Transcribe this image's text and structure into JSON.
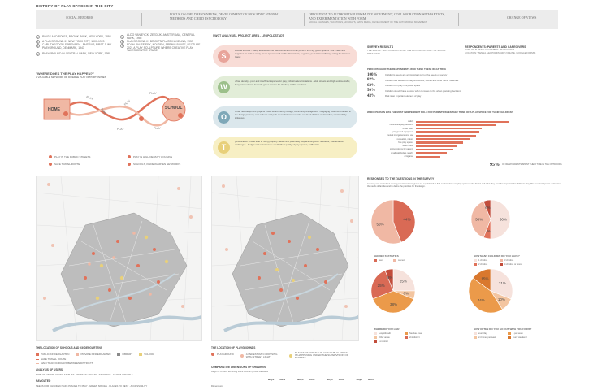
{
  "header": {
    "title": "HISTORY OF PLAY SPACES IN THE CITY",
    "cells": [
      {
        "label": "SOCIAL REFORMS"
      },
      {
        "label": "FOCUS ON CHILDREN'S NEEDS, DEVELOPMENT OF NEW EDUCATIONAL METHODS AND CHILD PSYCHOLOGY"
      },
      {
        "label": "OPPOSITION TO AUTHORITARIANISM, DIY MOVEMENT, COLLABORATION WITH ARTISTS, AND EXPERIMENTATION WITH FORM",
        "sub": "SOCIAL CHANGES, VACATIONS, HOLIDAYS, MASS MEDIA, DEVELOPMENT OF THE AUTOMOBILE MOVEMENT"
      },
      {
        "label": "CHANGE OF VIEWS"
      }
    ]
  },
  "history": {
    "left": [
      "RINGS AND POLES, BROOK PARK, NEW YORK, 1892",
      "A PLAYGROUND IN NEW YORK CITY, 1900-1920",
      "CARL THEODOR SØRENSEN - EMDRUP, FIRST JUNK PLAYGROUND, DENMARK, 1943",
      "PLAYGROUND IN CENTRAL PARK, NEW YORK, 1955"
    ],
    "right": [
      "ALDO VAN EYCK, ZEEDIJK, AMSTERDAM, CENTRAL PARK, 1955",
      "PLAYGROUND IN BRIGITTAPLATZ IN VIENNA, 1959",
      "EDON PAUSE EEK, NOLDEN, SPRING BLUSE, LECTURE 2021 A PLAY SCULPTURE WHERE CREATIVE PLAY TAKES CENTRE STAGE"
    ]
  },
  "play_diagram": {
    "title": "\"WHERE DOES THE PLAY HAPPEN?\"",
    "subtitle": "A VALUABLE NETWORK OF DIVERSE PLAY OPPORTUNITIES",
    "home": "HOME",
    "school": "SCHOOL",
    "play_labels": [
      "PLAY",
      "PLAY",
      "PLAY",
      "PLAY",
      "PLAY",
      "PLAY"
    ],
    "legend": [
      {
        "label": "PLAY IN THE PUBLIC STREETS",
        "color": "#e0725a"
      },
      {
        "label": "PLAY IN HIGH DENSITY HOUSING",
        "color": "#e0725a"
      },
      {
        "label": "SAFE TRAVEL ROUTE",
        "color": "#e0725a"
      },
      {
        "label": "SCHOOLS, KINDERGARTEN NETWORKS",
        "color": "#e0725a"
      }
    ]
  },
  "swot": {
    "title": "SWOT ANALYSIS - PROJECT AREA - LEOPOLDSTADT",
    "items": [
      {
        "letter": "S",
        "color": "#e8a49a",
        "bg": "#f8dcd6",
        "text": "several schools - easily accessible and well-connected to other parts of the city; green spaces - the Prater and Augarten as well as many green spaces such as the Praterstern; Augarten; pedestrian walkways along the Danube Canal"
      },
      {
        "letter": "W",
        "color": "#9cc08a",
        "bg": "#e2edd8",
        "text": "urban density - poor and insufficient spaces for play; infrastructure limitations - wide streets and high-volume traffic, busy intersections; few safe green spaces for children; traffic conditions"
      },
      {
        "letter": "O",
        "color": "#7fa8b8",
        "bg": "#dbe7ec",
        "text": "urban redevelopment projects - user doubt-friendly design; community engagement - engaging local communities in the design process; new schools and park areas that can meet the needs of children and families; sustainability initiatives"
      },
      {
        "letter": "T",
        "color": "#e8d07a",
        "bg": "#f7efc4",
        "text": "gentrification - could lead to rising property values and potentially displace long-term residents; maintenance challenges - budget and maintenance could affect quality of play spaces; traffic risks"
      }
    ]
  },
  "survey": {
    "title": "SURVEY RESULTS",
    "sub1": "THE SURVEY WAS CONDUCTED BY THE AUTHORS AS PART OF SOCIAL RESEARCH",
    "title2": "RESPONDENTS: PARENTS AND CAREGIVERS",
    "sub2": "DATE OF SURVEY: DECEMBER - MARCH 2024",
    "sub3": "LOCATION: VIENNA, LEOPOLDSTADT (ONLINE, GOOGLE FORMS)",
    "stats_title": "PERCENTAGE OF THE RESPONDENTS WHO THINK THESE IDEAS TRUE",
    "stats": [
      {
        "pct": "100%",
        "text": "Children's needs are an important part of the needs of society"
      },
      {
        "pct": "82%",
        "text": "Children are allowed to play with sticks, stones and other found materials"
      },
      {
        "pct": "63%",
        "text": "Children can play in a public space"
      },
      {
        "pct": "50%",
        "text": "Children should have a voice when it comes to the urban planning decisions"
      },
      {
        "pct": "43%",
        "text": "Risk is an important element of play"
      }
    ],
    "bars_title": "WHICH PERSON WAS THE MOST INDEPENDENT ROLE FOR PARENTS WHEN THEY THINK OF A PLAY SPACE FOR THEIR CHILDREN?",
    "footnote_pct": "95%",
    "footnote": "OF RESPONDENTS SPENT THEIR TIME IN THE OUTDOORS"
  },
  "chart_data": [
    {
      "type": "bar",
      "title": "",
      "categories": [
        "safety",
        "natural-like play elements",
        "urban oasis",
        "playground equipment",
        "mutual intergenerational use",
        "recreation, nature",
        "free play spaces",
        "water areas",
        "sitting options for parents",
        "small cafe/toilets nearby",
        "a big area"
      ],
      "values": [
        100,
        85,
        70,
        68,
        64,
        57,
        50,
        44,
        40,
        33,
        26
      ]
    },
    {
      "type": "pie",
      "title": "GENDER STATISTICS",
      "labels": [
        "men",
        "women"
      ],
      "values": [
        44,
        56
      ],
      "colors": [
        "#d96a55",
        "#f0b8a4"
      ]
    },
    {
      "type": "pie",
      "title": "HOW MANY CHILDREN DO YOU HAVE?",
      "labels": [
        "1 children",
        "2 children",
        "3 children",
        "4 children or more"
      ],
      "values": [
        50,
        6,
        38,
        6
      ],
      "colors": [
        "#f6e2dc",
        "#e0725a",
        "#f0b8a4",
        "#c24d3b"
      ]
    },
    {
      "type": "pie",
      "title": "WHERE DO YOU LIVE?",
      "labels": [
        "Leopoldstadt",
        "Other areas",
        "Neubau area",
        "2nd district",
        "1st district"
      ],
      "values": [
        25,
        6,
        38,
        25,
        6
      ],
      "colors": [
        "#f6e2dc",
        "#f3c5a0",
        "#eb9a4a",
        "#d96a55",
        "#c24d3b"
      ]
    },
    {
      "type": "pie",
      "title": "HOW OFTEN DO YOU GO OUT WITH YOUR KIDS?",
      "labels": [
        "everyday",
        "2-3 times per week",
        "1 per week",
        "every weekend"
      ],
      "values": [
        31,
        10,
        44,
        15
      ],
      "colors": [
        "#f6e2dc",
        "#f3c5a0",
        "#eb9a4a",
        "#d9782e"
      ]
    }
  ],
  "responses_title": "RESPONSES TO THE QUESTIONS IN THE SURVEY",
  "responses_text": "A survey was carried out among parents and caregivers in Leopoldstadt to find out how they use play spaces in the district and what they consider important for children's play. The results helped to understand the needs of families and to define the priorities for the design.",
  "maps": {
    "left_title": "THE LOCATION OF SCHOOLS AND KINDERGARTENS",
    "left_legend": [
      {
        "label": "PUBLIC KINDERGARTEN",
        "color": "#e0725a"
      },
      {
        "label": "PRIVATE KINDERGARTEN",
        "color": "#f0b8a4"
      },
      {
        "label": "LIBRARY",
        "color": "#8a8a8a"
      },
      {
        "label": "SCHOOL",
        "color": "#e8d07a"
      }
    ],
    "left_legend2": [
      {
        "label": "SAFE TRAVEL ROUTE",
        "color": "#e0725a"
      },
      {
        "label": "MAIN TRAFFIC ROADS BETWEEN DISTRICTS",
        "color": "#f0b8a4"
      }
    ],
    "right_title": "THE LOCATION OF PLAYGROUNDS",
    "right_legend": [
      {
        "label": "PLAYGROUND",
        "color": "#e0725a"
      },
      {
        "label": "A PEDESTRIAN CROSSING WITH STREET LIGHT",
        "color": "#f0b8a4"
      },
      {
        "label": "PLACES WHERE THE PLAY IN PUBLIC SPACE IS HAPPENING UNDER THE SUPERVISION OF PARENTS",
        "color": "#e8d07a"
      }
    ]
  },
  "users": {
    "title": "ANALYSIS OF USERS",
    "sub": "TYPE OF USERS: YOUNG FAMILIES · WORKING ADULTS · STUDENTS · ELDERLY PEOPLE",
    "needs_title": "NAVIGATED",
    "needs": "NEEDS FOR CHILDREN SAFE PLACES TO PLAY · GREEN SPACES · PLACES TO REST · ACCESSIBILITY"
  },
  "comparative": {
    "title": "COMPARATIVE DIMENSIONS OF CHILDREN",
    "sub": "Height of children according to the Austrian growth standards",
    "cols": [
      "Boys",
      "Girls",
      "Boys",
      "Girls",
      "Boys",
      "Girls",
      "Boys",
      "Girls"
    ],
    "row_label": "Dimensions"
  }
}
